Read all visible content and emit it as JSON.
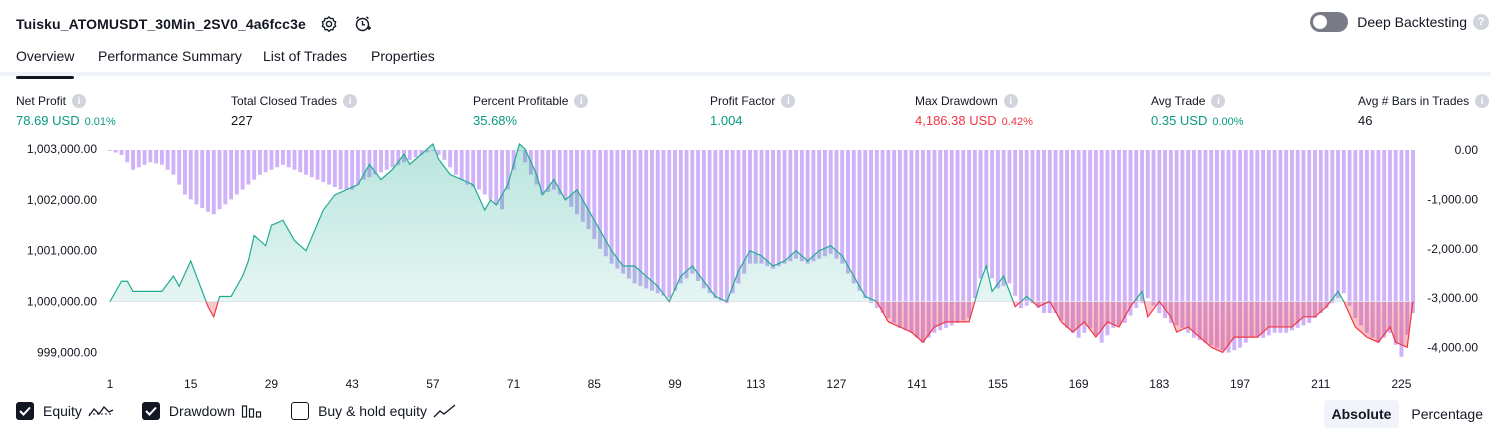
{
  "header": {
    "title": "Tuisku_ATOMUSDT_30Min_2SV0_4a6fcc3e",
    "deep_backtesting_label": "Deep Backtesting",
    "deep_backtesting_enabled": false
  },
  "tabs": [
    {
      "label": "Overview",
      "active": true
    },
    {
      "label": "Performance Summary",
      "active": false
    },
    {
      "label": "List of Trades",
      "active": false
    },
    {
      "label": "Properties",
      "active": false
    }
  ],
  "metrics": [
    {
      "label": "Net Profit",
      "value": "78.69 USD",
      "pct": "0.01%",
      "tone": "green"
    },
    {
      "label": "Total Closed Trades",
      "value": "227",
      "pct": "",
      "tone": "dark"
    },
    {
      "label": "Percent Profitable",
      "value": "35.68%",
      "pct": "",
      "tone": "green"
    },
    {
      "label": "Profit Factor",
      "value": "1.004",
      "pct": "",
      "tone": "green"
    },
    {
      "label": "Max Drawdown",
      "value": "4,186.38 USD",
      "pct": "0.42%",
      "tone": "red"
    },
    {
      "label": "Avg Trade",
      "value": "0.35 USD",
      "pct": "0.00%",
      "tone": "green"
    },
    {
      "label": "Avg # Bars in Trades",
      "value": "46",
      "pct": "",
      "tone": "dark"
    }
  ],
  "colors": {
    "profit": "#089981",
    "loss": "#f23645",
    "drawdown": "#cfb2f7",
    "equity_line_pos": "#22ab94",
    "equity_line_neg": "#f23645"
  },
  "chart_data": {
    "type": "area",
    "x_ticks": [
      1,
      15,
      29,
      43,
      57,
      71,
      85,
      99,
      113,
      127,
      141,
      155,
      169,
      183,
      197,
      211,
      225
    ],
    "equity_axis": {
      "ticks": [
        "1,003,000.00",
        "1,002,000.00",
        "1,001,000.00",
        "1,000,000.00",
        "999,000.00"
      ],
      "tick_values": [
        1003000,
        1002000,
        1001000,
        1000000,
        999000
      ],
      "ylim": [
        998850,
        1003100
      ],
      "baseline": 1000000
    },
    "drawdown_axis": {
      "ticks": [
        "0.00",
        "-1,000.00",
        "-2,000.00",
        "-3,000.00",
        "-4,000.00"
      ],
      "tick_values": [
        0,
        -1000,
        -2000,
        -3000,
        -4000
      ],
      "ylim": [
        -4250,
        0
      ]
    },
    "equity_keypoints": [
      [
        1,
        1000000
      ],
      [
        3,
        1000400
      ],
      [
        4,
        1000400
      ],
      [
        5,
        1000200
      ],
      [
        7,
        1000200
      ],
      [
        10,
        1000200
      ],
      [
        12,
        1000500
      ],
      [
        13,
        1000300
      ],
      [
        15,
        1000800
      ],
      [
        17,
        1000200
      ],
      [
        18,
        999900
      ],
      [
        19,
        999700
      ],
      [
        20,
        1000100
      ],
      [
        22,
        1000100
      ],
      [
        24,
        1000500
      ],
      [
        25,
        1000800
      ],
      [
        26,
        1001300
      ],
      [
        28,
        1001100
      ],
      [
        29,
        1001500
      ],
      [
        31,
        1001600
      ],
      [
        33,
        1001200
      ],
      [
        35,
        1001000
      ],
      [
        38,
        1001800
      ],
      [
        40,
        1002100
      ],
      [
        42,
        1002200
      ],
      [
        44,
        1002300
      ],
      [
        46,
        1002700
      ],
      [
        48,
        1002400
      ],
      [
        50,
        1002600
      ],
      [
        52,
        1002900
      ],
      [
        53,
        1002700
      ],
      [
        55,
        1002900
      ],
      [
        57,
        1003100
      ],
      [
        58,
        1002800
      ],
      [
        60,
        1002500
      ],
      [
        62,
        1002400
      ],
      [
        64,
        1002300
      ],
      [
        66,
        1001800
      ],
      [
        67,
        1002000
      ],
      [
        68,
        1001900
      ],
      [
        70,
        1002300
      ],
      [
        72,
        1003100
      ],
      [
        73,
        1003000
      ],
      [
        75,
        1002500
      ],
      [
        76,
        1002100
      ],
      [
        78,
        1002400
      ],
      [
        80,
        1002000
      ],
      [
        82,
        1002200
      ],
      [
        84,
        1001800
      ],
      [
        86,
        1001400
      ],
      [
        88,
        1001000
      ],
      [
        90,
        1000700
      ],
      [
        92,
        1000700
      ],
      [
        94,
        1000500
      ],
      [
        96,
        1000300
      ],
      [
        98,
        1000000
      ],
      [
        100,
        1000500
      ],
      [
        102,
        1000700
      ],
      [
        104,
        1000400
      ],
      [
        106,
        1000100
      ],
      [
        108,
        1000000
      ],
      [
        110,
        1000600
      ],
      [
        112,
        1001000
      ],
      [
        114,
        1000900
      ],
      [
        116,
        1000700
      ],
      [
        118,
        1000800
      ],
      [
        120,
        1001000
      ],
      [
        122,
        1000800
      ],
      [
        124,
        1001000
      ],
      [
        126,
        1001100
      ],
      [
        128,
        1000900
      ],
      [
        130,
        1000500
      ],
      [
        132,
        1000100
      ],
      [
        134,
        1000000
      ],
      [
        135,
        999800
      ],
      [
        136,
        999600
      ],
      [
        138,
        999500
      ],
      [
        140,
        999400
      ],
      [
        142,
        999200
      ],
      [
        144,
        999500
      ],
      [
        146,
        999600
      ],
      [
        148,
        999600
      ],
      [
        150,
        999600
      ],
      [
        152,
        1000400
      ],
      [
        153,
        1000700
      ],
      [
        154,
        1000200
      ],
      [
        156,
        1000500
      ],
      [
        158,
        999900
      ],
      [
        160,
        1000100
      ],
      [
        162,
        999900
      ],
      [
        164,
        1000000
      ],
      [
        166,
        999600
      ],
      [
        168,
        999400
      ],
      [
        170,
        999600
      ],
      [
        172,
        999300
      ],
      [
        174,
        999600
      ],
      [
        176,
        999500
      ],
      [
        178,
        999900
      ],
      [
        180,
        1000200
      ],
      [
        181,
        999700
      ],
      [
        183,
        1000000
      ],
      [
        185,
        999700
      ],
      [
        186,
        999400
      ],
      [
        188,
        999500
      ],
      [
        190,
        999300
      ],
      [
        192,
        999100
      ],
      [
        194,
        999000
      ],
      [
        196,
        999300
      ],
      [
        200,
        999300
      ],
      [
        202,
        999500
      ],
      [
        204,
        999500
      ],
      [
        206,
        999500
      ],
      [
        208,
        999700
      ],
      [
        210,
        999700
      ],
      [
        212,
        999900
      ],
      [
        214,
        1000200
      ],
      [
        215,
        1000000
      ],
      [
        217,
        999500
      ],
      [
        219,
        999300
      ],
      [
        221,
        999200
      ],
      [
        223,
        999500
      ],
      [
        224,
        999200
      ],
      [
        226,
        999100
      ],
      [
        227,
        1000000
      ]
    ],
    "drawdown_keypoints": [
      [
        1,
        0
      ],
      [
        3,
        -100
      ],
      [
        5,
        -400
      ],
      [
        8,
        -250
      ],
      [
        10,
        -300
      ],
      [
        12,
        -500
      ],
      [
        14,
        -900
      ],
      [
        16,
        -1100
      ],
      [
        18,
        -1250
      ],
      [
        19,
        -1300
      ],
      [
        21,
        -1100
      ],
      [
        23,
        -900
      ],
      [
        25,
        -700
      ],
      [
        27,
        -500
      ],
      [
        29,
        -400
      ],
      [
        31,
        -300
      ],
      [
        33,
        -400
      ],
      [
        35,
        -500
      ],
      [
        37,
        -600
      ],
      [
        39,
        -700
      ],
      [
        41,
        -800
      ],
      [
        43,
        -800
      ],
      [
        45,
        -600
      ],
      [
        47,
        -500
      ],
      [
        49,
        -400
      ],
      [
        51,
        -300
      ],
      [
        53,
        -200
      ],
      [
        55,
        -100
      ],
      [
        57,
        0
      ],
      [
        59,
        -200
      ],
      [
        61,
        -500
      ],
      [
        63,
        -700
      ],
      [
        65,
        -800
      ],
      [
        67,
        -1000
      ],
      [
        69,
        -1200
      ],
      [
        71,
        -400
      ],
      [
        72,
        0
      ],
      [
        74,
        -500
      ],
      [
        76,
        -900
      ],
      [
        78,
        -800
      ],
      [
        80,
        -1000
      ],
      [
        82,
        -1300
      ],
      [
        84,
        -1600
      ],
      [
        86,
        -2000
      ],
      [
        88,
        -2300
      ],
      [
        90,
        -2500
      ],
      [
        92,
        -2700
      ],
      [
        94,
        -2800
      ],
      [
        96,
        -2900
      ],
      [
        98,
        -3000
      ],
      [
        100,
        -2700
      ],
      [
        102,
        -2500
      ],
      [
        104,
        -2800
      ],
      [
        106,
        -3000
      ],
      [
        108,
        -3100
      ],
      [
        110,
        -2700
      ],
      [
        112,
        -2300
      ],
      [
        114,
        -2300
      ],
      [
        116,
        -2400
      ],
      [
        118,
        -2300
      ],
      [
        120,
        -2200
      ],
      [
        122,
        -2300
      ],
      [
        124,
        -2200
      ],
      [
        126,
        -2100
      ],
      [
        128,
        -2300
      ],
      [
        130,
        -2700
      ],
      [
        132,
        -3000
      ],
      [
        134,
        -3200
      ],
      [
        136,
        -3400
      ],
      [
        138,
        -3600
      ],
      [
        140,
        -3700
      ],
      [
        142,
        -3900
      ],
      [
        144,
        -3700
      ],
      [
        146,
        -3600
      ],
      [
        148,
        -3500
      ],
      [
        150,
        -3400
      ],
      [
        152,
        -2600
      ],
      [
        153,
        -2400
      ],
      [
        155,
        -2800
      ],
      [
        157,
        -2700
      ],
      [
        159,
        -3200
      ],
      [
        161,
        -3100
      ],
      [
        163,
        -3300
      ],
      [
        165,
        -3300
      ],
      [
        167,
        -3600
      ],
      [
        169,
        -3800
      ],
      [
        171,
        -3600
      ],
      [
        173,
        -3900
      ],
      [
        175,
        -3600
      ],
      [
        177,
        -3500
      ],
      [
        179,
        -3200
      ],
      [
        181,
        -3000
      ],
      [
        183,
        -3300
      ],
      [
        185,
        -3500
      ],
      [
        187,
        -3600
      ],
      [
        189,
        -3800
      ],
      [
        191,
        -3900
      ],
      [
        193,
        -4000
      ],
      [
        195,
        -4100
      ],
      [
        197,
        -4000
      ],
      [
        199,
        -3800
      ],
      [
        201,
        -3800
      ],
      [
        203,
        -3700
      ],
      [
        205,
        -3700
      ],
      [
        207,
        -3600
      ],
      [
        209,
        -3500
      ],
      [
        211,
        -3300
      ],
      [
        213,
        -3100
      ],
      [
        215,
        -2900
      ],
      [
        217,
        -3400
      ],
      [
        219,
        -3700
      ],
      [
        221,
        -3900
      ],
      [
        223,
        -3700
      ],
      [
        225,
        -4186
      ],
      [
        227,
        -3300
      ]
    ],
    "x_range": [
      1,
      227
    ],
    "grid": false
  },
  "footer": {
    "legend": [
      {
        "label": "Equity",
        "checked": true,
        "icon": "equity-line-icon"
      },
      {
        "label": "Drawdown",
        "checked": true,
        "icon": "drawdown-bars-icon"
      },
      {
        "label": "Buy & hold equity",
        "checked": false,
        "icon": "buyhold-line-icon"
      }
    ],
    "modes": [
      {
        "label": "Absolute",
        "active": true
      },
      {
        "label": "Percentage",
        "active": false
      }
    ]
  }
}
